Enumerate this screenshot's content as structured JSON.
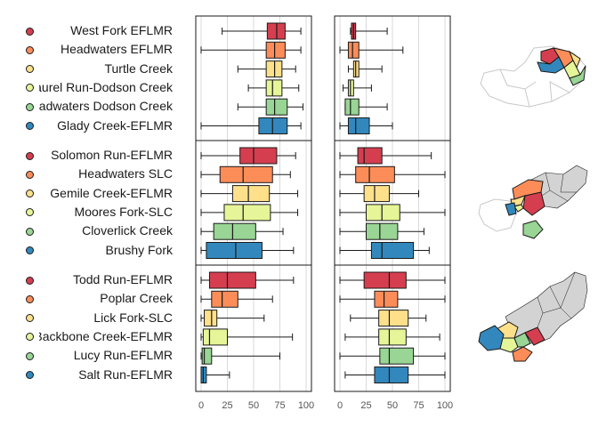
{
  "palette": [
    "#d53e4f",
    "#fc8d59",
    "#fee08b",
    "#e6f598",
    "#99d594",
    "#3288bd"
  ],
  "tick_values": [
    "0",
    "25",
    "50",
    "75",
    "100"
  ],
  "map_colors": {
    "outline": "#c8c8c8",
    "context_fill": "#d3d3d3",
    "empty_fill": "#ffffff"
  },
  "chart_data": {
    "type": "box",
    "orientation": "horizontal",
    "xlim": [
      0,
      100
    ],
    "x_ticks": [
      0,
      25,
      50,
      75,
      100
    ],
    "grid": true,
    "panels": [
      "left",
      "right"
    ],
    "groups": [
      {
        "items": [
          {
            "name": "West Fork EFLMR",
            "left": [
              20,
              63,
              72,
              80,
              95
            ],
            "right": [
              10,
              11,
              13,
              15,
              45
            ]
          },
          {
            "name": "Headwaters EFLMR",
            "left": [
              0,
              62,
              70,
              80,
              95
            ],
            "right": [
              0,
              8,
              12,
              18,
              60
            ]
          },
          {
            "name": "Turtle Creek",
            "left": [
              35,
              62,
              70,
              77,
              90
            ],
            "right": [
              8,
              13,
              15,
              18,
              40
            ]
          },
          {
            "name": "Laurel Run-Dodson Creek",
            "left": [
              45,
              62,
              68,
              77,
              93
            ],
            "right": [
              3,
              8,
              10,
              13,
              30
            ]
          },
          {
            "name": "Headwaters Dodson Creek",
            "left": [
              35,
              62,
              70,
              82,
              97
            ],
            "right": [
              5,
              5,
              10,
              18,
              45
            ]
          },
          {
            "name": "Glady Creek-EFLMR",
            "left": [
              0,
              55,
              68,
              82,
              95
            ],
            "right": [
              0,
              8,
              15,
              28,
              50
            ]
          }
        ]
      },
      {
        "items": [
          {
            "name": "Solomon Run-EFLMR",
            "left": [
              0,
              37,
              50,
              72,
              90
            ],
            "right": [
              0,
              17,
              23,
              40,
              87
            ]
          },
          {
            "name": "Headwaters SLC",
            "left": [
              0,
              18,
              40,
              68,
              85
            ],
            "right": [
              0,
              15,
              28,
              52,
              100
            ]
          },
          {
            "name": "Gemile Creek-EFLMR",
            "left": [
              0,
              30,
              45,
              65,
              92
            ],
            "right": [
              0,
              23,
              33,
              47,
              75
            ]
          },
          {
            "name": "Moores Fork-SLC",
            "left": [
              0,
              22,
              40,
              66,
              92
            ],
            "right": [
              0,
              25,
              40,
              57,
              100
            ]
          },
          {
            "name": "Cloverlick Creek",
            "left": [
              0,
              12,
              30,
              52,
              78
            ],
            "right": [
              0,
              25,
              38,
              55,
              80
            ]
          },
          {
            "name": "Brushy Fork",
            "left": [
              0,
              5,
              33,
              58,
              88
            ],
            "right": [
              0,
              30,
              40,
              70,
              85
            ]
          }
        ]
      },
      {
        "items": [
          {
            "name": "Todd Run-EFLMR",
            "left": [
              0,
              8,
              25,
              52,
              88
            ],
            "right": [
              0,
              23,
              47,
              63,
              100
            ]
          },
          {
            "name": "Poplar Creek",
            "left": [
              0,
              10,
              20,
              35,
              68
            ],
            "right": [
              0,
              33,
              42,
              55,
              100
            ]
          },
          {
            "name": "Lick Fork-SLC",
            "left": [
              0,
              3,
              10,
              15,
              60
            ],
            "right": [
              10,
              37,
              47,
              65,
              82
            ]
          },
          {
            "name": "Backbone Creek-EFLMR",
            "left": [
              0,
              2,
              8,
              25,
              87
            ],
            "right": [
              5,
              37,
              47,
              63,
              95
            ]
          },
          {
            "name": "Lucy Run-EFLMR",
            "left": [
              0,
              1,
              3,
              10,
              75
            ],
            "right": [
              0,
              38,
              47,
              70,
              100
            ]
          },
          {
            "name": "Salt Run-EFLMR",
            "left": [
              0,
              0,
              2,
              5,
              27
            ],
            "right": [
              5,
              33,
              47,
              65,
              100
            ]
          }
        ]
      }
    ]
  }
}
